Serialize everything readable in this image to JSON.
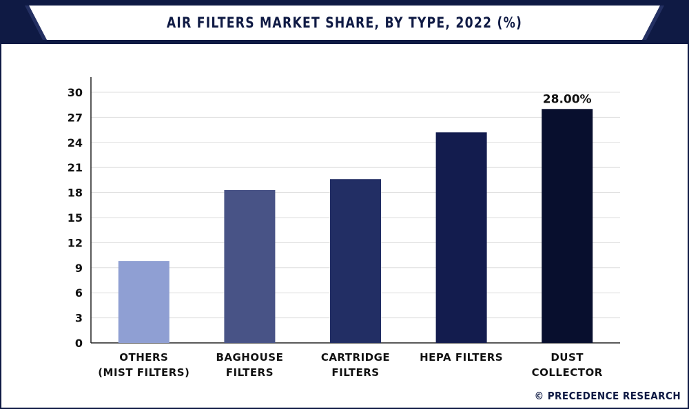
{
  "title": "AIR FILTERS MARKET SHARE, BY TYPE, 2022 (%)",
  "credit": "© PRECEDENCE RESEARCH",
  "colors": {
    "frame": "#0f1a44",
    "gridline": "#dddddd",
    "axis": "#222222"
  },
  "chart_data": {
    "type": "bar",
    "title": "AIR FILTERS MARKET SHARE, BY TYPE, 2022 (%)",
    "categories": [
      [
        "OTHERS",
        "(MIST FILTERS)"
      ],
      [
        "BAGHOUSE",
        "FILTERS"
      ],
      [
        "CARTRIDGE",
        "FILTERS"
      ],
      [
        "HEPA FILTERS"
      ],
      [
        "DUST",
        "COLLECTOR"
      ]
    ],
    "values": [
      9.8,
      18.3,
      19.6,
      25.2,
      28.0
    ],
    "bar_colors": [
      "#8f9fd3",
      "#485386",
      "#222e64",
      "#131c4e",
      "#080f2e"
    ],
    "data_labels": [
      "",
      "",
      "",
      "",
      "28.00%"
    ],
    "ylim": [
      0,
      30
    ],
    "yticks": [
      0,
      3,
      6,
      9,
      12,
      15,
      18,
      21,
      24,
      27,
      30
    ],
    "grid": true,
    "legend": "none"
  }
}
